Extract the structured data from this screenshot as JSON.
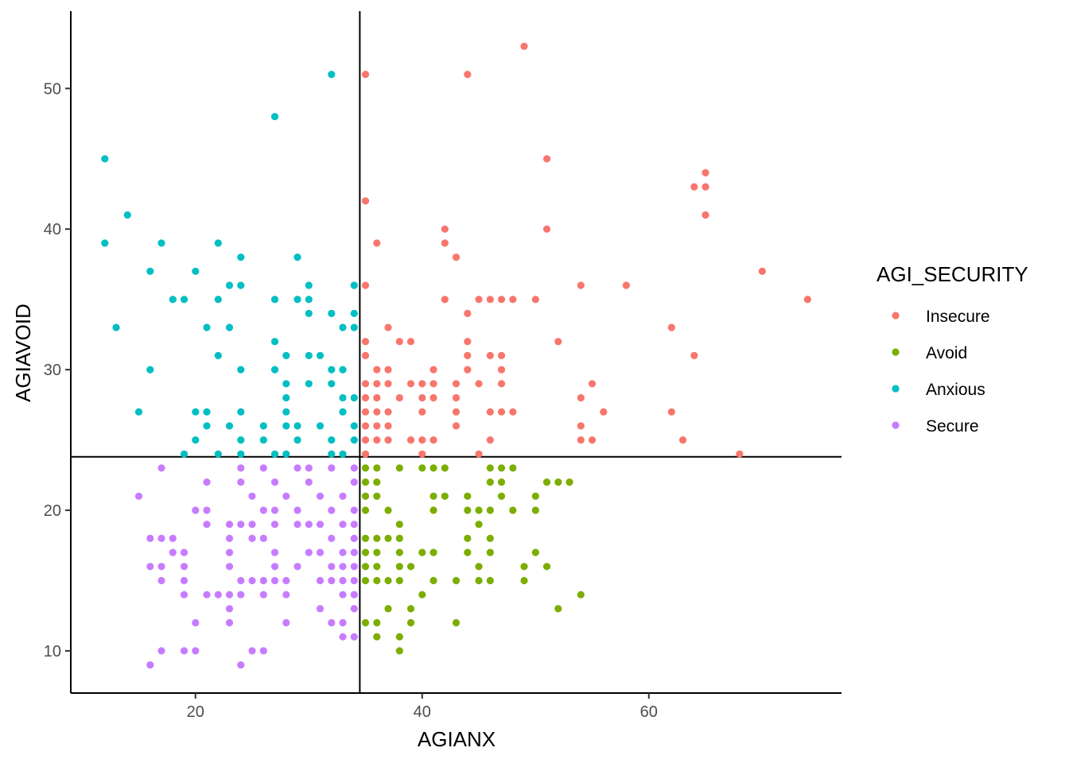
{
  "chart_data": {
    "type": "scatter",
    "xlabel": "AGIANX",
    "ylabel": "AGIAVOID",
    "xlim": [
      9,
      77
    ],
    "ylim": [
      7,
      55.5
    ],
    "x_ticks": [
      20,
      40,
      60
    ],
    "y_ticks": [
      10,
      20,
      30,
      40,
      50
    ],
    "grid": false,
    "legend_position": "right",
    "reference_lines": {
      "vertical_x": 34.5,
      "horizontal_y": 23.8
    },
    "legend": {
      "title": "AGI_SECURITY",
      "items": [
        {
          "label": "Insecure",
          "color": "#F8766D"
        },
        {
          "label": "Avoid",
          "color": "#7CAE00"
        },
        {
          "label": "Anxious",
          "color": "#00BFC4"
        },
        {
          "label": "Secure",
          "color": "#C77CFF"
        }
      ]
    },
    "series": [
      {
        "name": "Insecure",
        "color": "#F8766D",
        "points": [
          [
            49,
            53
          ],
          [
            35,
            51
          ],
          [
            44,
            51
          ],
          [
            51,
            45
          ],
          [
            35,
            42
          ],
          [
            64,
            43
          ],
          [
            65,
            44
          ],
          [
            65,
            43
          ],
          [
            65,
            41
          ],
          [
            42,
            40
          ],
          [
            51,
            40
          ],
          [
            36,
            39
          ],
          [
            42,
            39
          ],
          [
            43,
            38
          ],
          [
            70,
            37
          ],
          [
            74,
            35
          ],
          [
            35,
            36
          ],
          [
            54,
            36
          ],
          [
            58,
            36
          ],
          [
            44,
            34
          ],
          [
            42,
            35
          ],
          [
            45,
            35
          ],
          [
            46,
            35
          ],
          [
            47,
            35
          ],
          [
            48,
            35
          ],
          [
            50,
            35
          ],
          [
            35,
            32
          ],
          [
            37,
            33
          ],
          [
            62,
            33
          ],
          [
            38,
            32
          ],
          [
            39,
            32
          ],
          [
            44,
            32
          ],
          [
            52,
            32
          ],
          [
            35,
            31
          ],
          [
            44,
            31
          ],
          [
            46,
            31
          ],
          [
            47,
            31
          ],
          [
            64,
            31
          ],
          [
            36,
            30
          ],
          [
            37,
            30
          ],
          [
            41,
            30
          ],
          [
            44,
            30
          ],
          [
            47,
            30
          ],
          [
            35,
            29
          ],
          [
            36,
            29
          ],
          [
            37,
            29
          ],
          [
            39,
            29
          ],
          [
            40,
            29
          ],
          [
            41,
            29
          ],
          [
            43,
            29
          ],
          [
            45,
            29
          ],
          [
            47,
            29
          ],
          [
            55,
            29
          ],
          [
            35,
            28
          ],
          [
            36,
            28
          ],
          [
            38,
            28
          ],
          [
            40,
            28
          ],
          [
            41,
            28
          ],
          [
            43,
            28
          ],
          [
            54,
            28
          ],
          [
            35,
            27
          ],
          [
            36,
            27
          ],
          [
            37,
            27
          ],
          [
            40,
            27
          ],
          [
            43,
            27
          ],
          [
            46,
            27
          ],
          [
            47,
            27
          ],
          [
            48,
            27
          ],
          [
            56,
            27
          ],
          [
            62,
            27
          ],
          [
            35,
            26
          ],
          [
            36,
            26
          ],
          [
            37,
            26
          ],
          [
            43,
            26
          ],
          [
            54,
            26
          ],
          [
            35,
            25
          ],
          [
            36,
            25
          ],
          [
            37,
            25
          ],
          [
            39,
            25
          ],
          [
            40,
            25
          ],
          [
            41,
            25
          ],
          [
            46,
            25
          ],
          [
            54,
            25
          ],
          [
            55,
            25
          ],
          [
            63,
            25
          ],
          [
            35,
            24
          ],
          [
            40,
            24
          ],
          [
            45,
            24
          ],
          [
            68,
            24
          ]
        ]
      },
      {
        "name": "Avoid",
        "color": "#7CAE00",
        "points": [
          [
            35,
            23
          ],
          [
            36,
            23
          ],
          [
            38,
            23
          ],
          [
            40,
            23
          ],
          [
            41,
            23
          ],
          [
            42,
            23
          ],
          [
            46,
            23
          ],
          [
            47,
            23
          ],
          [
            48,
            23
          ],
          [
            35,
            22
          ],
          [
            36,
            22
          ],
          [
            46,
            22
          ],
          [
            47,
            22
          ],
          [
            51,
            22
          ],
          [
            52,
            22
          ],
          [
            53,
            22
          ],
          [
            35,
            21
          ],
          [
            36,
            21
          ],
          [
            41,
            21
          ],
          [
            42,
            21
          ],
          [
            44,
            21
          ],
          [
            47,
            21
          ],
          [
            50,
            21
          ],
          [
            35,
            20
          ],
          [
            37,
            20
          ],
          [
            41,
            20
          ],
          [
            44,
            20
          ],
          [
            45,
            20
          ],
          [
            46,
            20
          ],
          [
            48,
            20
          ],
          [
            50,
            20
          ],
          [
            38,
            19
          ],
          [
            45,
            19
          ],
          [
            35,
            18
          ],
          [
            36,
            18
          ],
          [
            37,
            18
          ],
          [
            38,
            18
          ],
          [
            44,
            18
          ],
          [
            46,
            18
          ],
          [
            35,
            17
          ],
          [
            36,
            17
          ],
          [
            38,
            17
          ],
          [
            40,
            17
          ],
          [
            41,
            17
          ],
          [
            44,
            17
          ],
          [
            46,
            17
          ],
          [
            50,
            17
          ],
          [
            35,
            16
          ],
          [
            36,
            16
          ],
          [
            38,
            16
          ],
          [
            39,
            16
          ],
          [
            45,
            16
          ],
          [
            49,
            16
          ],
          [
            51,
            16
          ],
          [
            35,
            15
          ],
          [
            36,
            15
          ],
          [
            37,
            15
          ],
          [
            38,
            15
          ],
          [
            41,
            15
          ],
          [
            43,
            15
          ],
          [
            45,
            15
          ],
          [
            46,
            15
          ],
          [
            49,
            15
          ],
          [
            40,
            14
          ],
          [
            54,
            14
          ],
          [
            37,
            13
          ],
          [
            39,
            13
          ],
          [
            52,
            13
          ],
          [
            35,
            12
          ],
          [
            36,
            12
          ],
          [
            39,
            12
          ],
          [
            43,
            12
          ],
          [
            36,
            11
          ],
          [
            38,
            11
          ],
          [
            38,
            10
          ]
        ]
      },
      {
        "name": "Anxious",
        "color": "#00BFC4",
        "points": [
          [
            32,
            51
          ],
          [
            27,
            48
          ],
          [
            12,
            45
          ],
          [
            14,
            41
          ],
          [
            12,
            39
          ],
          [
            17,
            39
          ],
          [
            22,
            39
          ],
          [
            24,
            38
          ],
          [
            29,
            38
          ],
          [
            16,
            37
          ],
          [
            20,
            37
          ],
          [
            23,
            36
          ],
          [
            24,
            36
          ],
          [
            30,
            36
          ],
          [
            34,
            36
          ],
          [
            18,
            35
          ],
          [
            19,
            35
          ],
          [
            22,
            35
          ],
          [
            27,
            35
          ],
          [
            29,
            35
          ],
          [
            30,
            35
          ],
          [
            30,
            34
          ],
          [
            32,
            34
          ],
          [
            34,
            34
          ],
          [
            13,
            33
          ],
          [
            21,
            33
          ],
          [
            23,
            33
          ],
          [
            33,
            33
          ],
          [
            34,
            33
          ],
          [
            27,
            32
          ],
          [
            22,
            31
          ],
          [
            28,
            31
          ],
          [
            30,
            31
          ],
          [
            31,
            31
          ],
          [
            16,
            30
          ],
          [
            24,
            30
          ],
          [
            27,
            30
          ],
          [
            32,
            30
          ],
          [
            33,
            30
          ],
          [
            28,
            29
          ],
          [
            30,
            29
          ],
          [
            32,
            29
          ],
          [
            33,
            28
          ],
          [
            34,
            28
          ],
          [
            28,
            28
          ],
          [
            15,
            27
          ],
          [
            20,
            27
          ],
          [
            21,
            27
          ],
          [
            24,
            27
          ],
          [
            28,
            27
          ],
          [
            33,
            27
          ],
          [
            21,
            26
          ],
          [
            23,
            26
          ],
          [
            26,
            26
          ],
          [
            28,
            26
          ],
          [
            29,
            26
          ],
          [
            31,
            26
          ],
          [
            34,
            26
          ],
          [
            20,
            25
          ],
          [
            24,
            25
          ],
          [
            26,
            25
          ],
          [
            29,
            25
          ],
          [
            32,
            25
          ],
          [
            34,
            25
          ],
          [
            19,
            24
          ],
          [
            22,
            24
          ],
          [
            24,
            24
          ],
          [
            27,
            24
          ],
          [
            28,
            24
          ],
          [
            32,
            24
          ],
          [
            33,
            24
          ]
        ]
      },
      {
        "name": "Secure",
        "color": "#C77CFF",
        "points": [
          [
            17,
            23
          ],
          [
            24,
            23
          ],
          [
            26,
            23
          ],
          [
            29,
            23
          ],
          [
            30,
            23
          ],
          [
            32,
            23
          ],
          [
            34,
            23
          ],
          [
            21,
            22
          ],
          [
            24,
            22
          ],
          [
            27,
            22
          ],
          [
            30,
            22
          ],
          [
            34,
            22
          ],
          [
            15,
            21
          ],
          [
            25,
            21
          ],
          [
            28,
            21
          ],
          [
            31,
            21
          ],
          [
            33,
            21
          ],
          [
            20,
            20
          ],
          [
            21,
            20
          ],
          [
            26,
            20
          ],
          [
            27,
            20
          ],
          [
            29,
            20
          ],
          [
            32,
            20
          ],
          [
            34,
            20
          ],
          [
            21,
            19
          ],
          [
            23,
            19
          ],
          [
            24,
            19
          ],
          [
            25,
            19
          ],
          [
            27,
            19
          ],
          [
            29,
            19
          ],
          [
            30,
            19
          ],
          [
            31,
            19
          ],
          [
            33,
            19
          ],
          [
            34,
            19
          ],
          [
            16,
            18
          ],
          [
            17,
            18
          ],
          [
            18,
            18
          ],
          [
            23,
            18
          ],
          [
            25,
            18
          ],
          [
            26,
            18
          ],
          [
            32,
            18
          ],
          [
            34,
            18
          ],
          [
            18,
            17
          ],
          [
            19,
            17
          ],
          [
            23,
            17
          ],
          [
            27,
            17
          ],
          [
            30,
            17
          ],
          [
            31,
            17
          ],
          [
            33,
            17
          ],
          [
            34,
            17
          ],
          [
            16,
            16
          ],
          [
            17,
            16
          ],
          [
            19,
            16
          ],
          [
            23,
            16
          ],
          [
            27,
            16
          ],
          [
            29,
            16
          ],
          [
            32,
            16
          ],
          [
            33,
            16
          ],
          [
            34,
            16
          ],
          [
            17,
            15
          ],
          [
            19,
            15
          ],
          [
            24,
            15
          ],
          [
            25,
            15
          ],
          [
            26,
            15
          ],
          [
            27,
            15
          ],
          [
            28,
            15
          ],
          [
            31,
            15
          ],
          [
            32,
            15
          ],
          [
            33,
            15
          ],
          [
            34,
            15
          ],
          [
            19,
            14
          ],
          [
            21,
            14
          ],
          [
            22,
            14
          ],
          [
            23,
            14
          ],
          [
            24,
            14
          ],
          [
            26,
            14
          ],
          [
            28,
            14
          ],
          [
            33,
            14
          ],
          [
            34,
            14
          ],
          [
            23,
            13
          ],
          [
            31,
            13
          ],
          [
            34,
            13
          ],
          [
            20,
            12
          ],
          [
            23,
            12
          ],
          [
            28,
            12
          ],
          [
            32,
            12
          ],
          [
            33,
            12
          ],
          [
            33,
            11
          ],
          [
            34,
            11
          ],
          [
            17,
            10
          ],
          [
            19,
            10
          ],
          [
            20,
            10
          ],
          [
            25,
            10
          ],
          [
            26,
            10
          ],
          [
            16,
            9
          ],
          [
            24,
            9
          ]
        ]
      }
    ]
  }
}
